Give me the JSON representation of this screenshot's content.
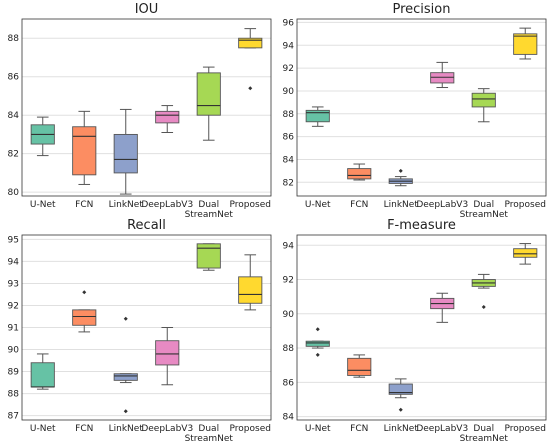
{
  "colors": {
    "U-Net": "#66c2a5",
    "FCN": "#fc8d62",
    "LinkNet": "#8da0cb",
    "DeepLabV3": "#e78ac3",
    "Dual StreamNet": "#a6d854",
    "Proposed": "#ffd92f",
    "grid": "#e0e0e0",
    "axis": "#333333",
    "median": "#333333"
  },
  "chart_data": [
    {
      "type": "box",
      "title": "IOU",
      "categories": [
        "U-Net",
        "FCN",
        "LinkNet",
        "DeepLabV3",
        "Dual StreamNet",
        "Proposed"
      ],
      "ylim": [
        79.8,
        89.0
      ],
      "yticks": [
        80,
        82,
        84,
        86,
        88
      ],
      "grid": true,
      "boxes": [
        {
          "min": 81.9,
          "q1": 82.5,
          "median": 83.0,
          "q3": 83.5,
          "max": 83.9,
          "outliers": []
        },
        {
          "min": 80.4,
          "q1": 80.9,
          "median": 82.9,
          "q3": 83.4,
          "max": 84.2,
          "outliers": []
        },
        {
          "min": 79.9,
          "q1": 81.0,
          "median": 81.7,
          "q3": 83.0,
          "max": 84.3,
          "outliers": []
        },
        {
          "min": 83.1,
          "q1": 83.6,
          "median": 84.0,
          "q3": 84.2,
          "max": 84.5,
          "outliers": []
        },
        {
          "min": 82.7,
          "q1": 84.0,
          "median": 84.5,
          "q3": 86.2,
          "max": 86.5,
          "outliers": []
        },
        {
          "min": 87.5,
          "q1": 87.5,
          "median": 87.9,
          "q3": 88.0,
          "max": 88.5,
          "outliers": [
            85.4
          ]
        }
      ]
    },
    {
      "type": "box",
      "title": "Precision",
      "categories": [
        "U-Net",
        "FCN",
        "LinkNet",
        "DeepLabV3",
        "Dual StreamNet",
        "Proposed"
      ],
      "ylim": [
        80.8,
        96.3
      ],
      "yticks": [
        82,
        84,
        86,
        88,
        90,
        92,
        94,
        96
      ],
      "grid": true,
      "boxes": [
        {
          "min": 86.9,
          "q1": 87.3,
          "median": 88.1,
          "q3": 88.3,
          "max": 88.6,
          "outliers": []
        },
        {
          "min": 82.2,
          "q1": 82.3,
          "median": 82.6,
          "q3": 83.2,
          "max": 83.6,
          "outliers": []
        },
        {
          "min": 81.7,
          "q1": 81.9,
          "median": 82.1,
          "q3": 82.3,
          "max": 82.5,
          "outliers": [
            83.0
          ]
        },
        {
          "min": 90.3,
          "q1": 90.7,
          "median": 91.2,
          "q3": 91.6,
          "max": 92.5,
          "outliers": []
        },
        {
          "min": 87.3,
          "q1": 88.6,
          "median": 89.3,
          "q3": 89.8,
          "max": 90.2,
          "outliers": []
        },
        {
          "min": 92.8,
          "q1": 93.2,
          "median": 94.8,
          "q3": 95.0,
          "max": 95.5,
          "outliers": []
        }
      ]
    },
    {
      "type": "box",
      "title": "Recall",
      "categories": [
        "U-Net",
        "FCN",
        "LinkNet",
        "DeepLabV3",
        "Dual StreamNet",
        "Proposed"
      ],
      "ylim": [
        86.8,
        95.2
      ],
      "yticks": [
        87,
        88,
        89,
        90,
        91,
        92,
        93,
        94,
        95
      ],
      "grid": true,
      "boxes": [
        {
          "min": 88.2,
          "q1": 88.3,
          "median": 88.3,
          "q3": 89.4,
          "max": 89.8,
          "outliers": []
        },
        {
          "min": 90.8,
          "q1": 91.1,
          "median": 91.5,
          "q3": 91.8,
          "max": 91.8,
          "outliers": [
            92.6
          ]
        },
        {
          "min": 88.5,
          "q1": 88.6,
          "median": 88.8,
          "q3": 88.9,
          "max": 88.9,
          "outliers": [
            91.4,
            87.2
          ]
        },
        {
          "min": 88.4,
          "q1": 89.3,
          "median": 89.8,
          "q3": 90.4,
          "max": 91.0,
          "outliers": []
        },
        {
          "min": 93.6,
          "q1": 93.7,
          "median": 94.6,
          "q3": 94.8,
          "max": 94.8,
          "outliers": []
        },
        {
          "min": 91.8,
          "q1": 92.1,
          "median": 92.5,
          "q3": 93.3,
          "max": 94.3,
          "outliers": []
        }
      ]
    },
    {
      "type": "box",
      "title": "F-measure",
      "categories": [
        "U-Net",
        "FCN",
        "LinkNet",
        "DeepLabV3",
        "Dual StreamNet",
        "Proposed"
      ],
      "ylim": [
        83.8,
        94.6
      ],
      "yticks": [
        84,
        86,
        88,
        90,
        92,
        94
      ],
      "grid": true,
      "boxes": [
        {
          "min": 88.0,
          "q1": 88.1,
          "median": 88.3,
          "q3": 88.4,
          "max": 88.4,
          "outliers": [
            89.1,
            87.6
          ]
        },
        {
          "min": 86.3,
          "q1": 86.4,
          "median": 86.7,
          "q3": 87.4,
          "max": 87.6,
          "outliers": []
        },
        {
          "min": 85.1,
          "q1": 85.3,
          "median": 85.4,
          "q3": 85.9,
          "max": 86.2,
          "outliers": [
            84.4
          ]
        },
        {
          "min": 89.5,
          "q1": 90.3,
          "median": 90.6,
          "q3": 90.9,
          "max": 91.2,
          "outliers": []
        },
        {
          "min": 91.5,
          "q1": 91.6,
          "median": 91.8,
          "q3": 92.0,
          "max": 92.3,
          "outliers": [
            90.4
          ]
        },
        {
          "min": 92.9,
          "q1": 93.3,
          "median": 93.5,
          "q3": 93.8,
          "max": 94.1,
          "outliers": []
        }
      ]
    }
  ]
}
